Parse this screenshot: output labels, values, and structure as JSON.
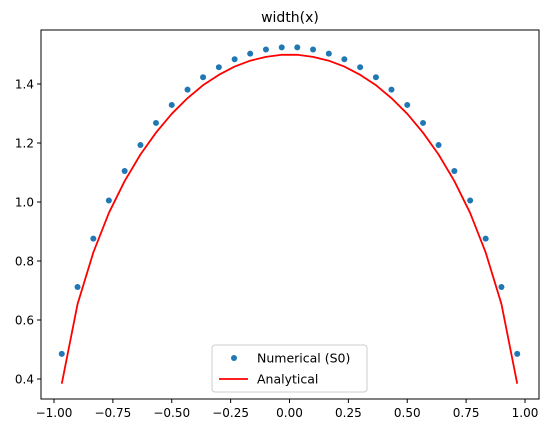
{
  "chart_data": {
    "type": "line",
    "title": "width(x)",
    "xlabel": "",
    "ylabel": "",
    "xlim": [
      -1.0,
      1.0
    ],
    "ylim": [
      0.34,
      1.57
    ],
    "xticks": [
      -1.0,
      -0.75,
      -0.5,
      -0.25,
      0.0,
      0.25,
      0.5,
      0.75,
      1.0
    ],
    "xtick_labels": [
      "−1.00",
      "−0.75",
      "−0.50",
      "−0.25",
      "0.00",
      "0.25",
      "0.50",
      "0.75",
      "1.00"
    ],
    "yticks": [
      0.4,
      0.6,
      0.8,
      1.0,
      1.2,
      1.4
    ],
    "ytick_labels": [
      "0.4",
      "0.6",
      "0.8",
      "1.0",
      "1.2",
      "1.4"
    ],
    "grid": false,
    "legend_position": "lower-center",
    "series": [
      {
        "name": "Numerical (S0)",
        "style": "markers",
        "color": "#1f77b4",
        "x": [
          -0.967,
          -0.9,
          -0.833,
          -0.767,
          -0.7,
          -0.633,
          -0.567,
          -0.5,
          -0.433,
          -0.367,
          -0.3,
          -0.233,
          -0.167,
          -0.1,
          -0.033,
          0.033,
          0.1,
          0.167,
          0.233,
          0.3,
          0.367,
          0.433,
          0.5,
          0.567,
          0.633,
          0.7,
          0.767,
          0.833,
          0.9,
          0.967
        ],
        "y": [
          0.485,
          0.712,
          0.876,
          1.005,
          1.105,
          1.193,
          1.268,
          1.329,
          1.381,
          1.423,
          1.457,
          1.484,
          1.503,
          1.517,
          1.524,
          1.524,
          1.517,
          1.503,
          1.484,
          1.457,
          1.423,
          1.381,
          1.329,
          1.268,
          1.193,
          1.105,
          1.005,
          0.876,
          0.712,
          0.485
        ]
      },
      {
        "name": "Analytical",
        "style": "line",
        "color": "#ff0000",
        "x": [
          -0.967,
          -0.9,
          -0.833,
          -0.767,
          -0.7,
          -0.633,
          -0.567,
          -0.5,
          -0.433,
          -0.367,
          -0.3,
          -0.233,
          -0.167,
          -0.1,
          -0.033,
          0.033,
          0.1,
          0.167,
          0.233,
          0.3,
          0.367,
          0.433,
          0.5,
          0.567,
          0.633,
          0.7,
          0.767,
          0.833,
          0.9,
          0.967
        ],
        "y": [
          0.384,
          0.654,
          0.829,
          0.963,
          1.071,
          1.161,
          1.235,
          1.299,
          1.352,
          1.396,
          1.431,
          1.459,
          1.479,
          1.492,
          1.499,
          1.499,
          1.492,
          1.479,
          1.459,
          1.431,
          1.396,
          1.352,
          1.299,
          1.235,
          1.161,
          1.071,
          0.963,
          0.829,
          0.654,
          0.384
        ]
      }
    ]
  }
}
